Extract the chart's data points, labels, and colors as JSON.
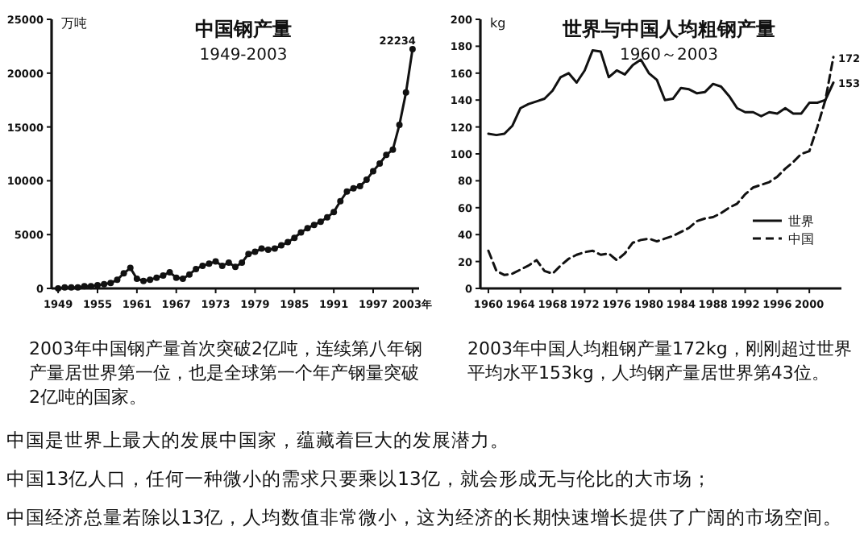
{
  "chart_data": [
    {
      "type": "line",
      "title": "中国钢产量",
      "subtitle": "1949-2003",
      "ylabel": "万吨",
      "marker": "circle",
      "grid": false,
      "x": [
        1949,
        1950,
        1951,
        1952,
        1953,
        1954,
        1955,
        1956,
        1957,
        1958,
        1959,
        1960,
        1961,
        1962,
        1963,
        1964,
        1965,
        1966,
        1967,
        1968,
        1969,
        1970,
        1971,
        1972,
        1973,
        1974,
        1975,
        1976,
        1977,
        1978,
        1979,
        1980,
        1981,
        1982,
        1983,
        1984,
        1985,
        1986,
        1987,
        1988,
        1989,
        1990,
        1991,
        1992,
        1993,
        1994,
        1995,
        1996,
        1997,
        1998,
        1999,
        2000,
        2001,
        2002,
        2003
      ],
      "series": [
        {
          "color": "#111111",
          "values": [
            0,
            100,
            100,
            100,
            200,
            200,
            300,
            400,
            500,
            800,
            1400,
            1900,
            900,
            700,
            800,
            1000,
            1200,
            1500,
            1000,
            900,
            1300,
            1800,
            2100,
            2300,
            2500,
            2100,
            2400,
            2000,
            2400,
            3200,
            3400,
            3700,
            3600,
            3700,
            4000,
            4300,
            4700,
            5200,
            5600,
            5900,
            6200,
            6600,
            7100,
            8100,
            9000,
            9300,
            9500,
            10100,
            10900,
            11600,
            12400,
            12900,
            15200,
            18200,
            22234
          ],
          "value_labels": [
            null,
            null,
            null,
            null,
            null,
            null,
            null,
            null,
            null,
            null,
            null,
            null,
            null,
            null,
            null,
            null,
            null,
            null,
            null,
            null,
            null,
            null,
            null,
            null,
            null,
            null,
            null,
            null,
            null,
            null,
            null,
            null,
            null,
            null,
            null,
            null,
            null,
            null,
            null,
            null,
            null,
            null,
            null,
            null,
            null,
            null,
            null,
            null,
            null,
            null,
            null,
            null,
            null,
            null,
            "22234"
          ]
        }
      ],
      "xlim": [
        1948,
        2004
      ],
      "xticks": [
        1949,
        1955,
        1961,
        1967,
        1973,
        1979,
        1985,
        1991,
        1997,
        {
          "value": 2003,
          "label": "2003年"
        }
      ],
      "ylim": [
        0,
        25000
      ],
      "yticks": [
        0,
        5000,
        10000,
        15000,
        20000,
        25000
      ],
      "annotations": [
        "2003年中国钢产量首次突破2亿吨，连续第八年钢产量居世界第一位，也是全球第一个年产钢量突破2亿吨的国家。"
      ]
    },
    {
      "type": "line",
      "title": "世界与中国人均粗钢产量",
      "subtitle": "1960～2003",
      "ylabel": "kg",
      "grid": false,
      "legend": "bottom right",
      "x": [
        1960,
        1961,
        1962,
        1963,
        1964,
        1965,
        1966,
        1967,
        1968,
        1969,
        1970,
        1971,
        1972,
        1973,
        1974,
        1975,
        1976,
        1977,
        1978,
        1979,
        1980,
        1981,
        1982,
        1983,
        1984,
        1985,
        1986,
        1987,
        1988,
        1989,
        1990,
        1991,
        1992,
        1993,
        1994,
        1995,
        1996,
        1997,
        1998,
        1999,
        2000,
        2001,
        2002,
        2003
      ],
      "series": [
        {
          "name": "世界",
          "color": "#111111",
          "line_style": "solid",
          "values": [
            115,
            114,
            115,
            121,
            134,
            137,
            139,
            141,
            147,
            157,
            160,
            153,
            162,
            177,
            176,
            157,
            162,
            159,
            166,
            170,
            160,
            155,
            140,
            141,
            149,
            148,
            145,
            146,
            152,
            150,
            143,
            134,
            131,
            131,
            128,
            131,
            130,
            134,
            130,
            130,
            138,
            138,
            140,
            153
          ],
          "value_labels": [
            null,
            null,
            null,
            null,
            null,
            null,
            null,
            null,
            null,
            null,
            null,
            null,
            null,
            null,
            null,
            null,
            null,
            null,
            null,
            null,
            null,
            null,
            null,
            null,
            null,
            null,
            null,
            null,
            null,
            null,
            null,
            null,
            null,
            null,
            null,
            null,
            null,
            null,
            null,
            null,
            null,
            null,
            null,
            "153"
          ]
        },
        {
          "name": "中国",
          "color": "#111111",
          "line_style": "dashed",
          "values": [
            28,
            13,
            10,
            11,
            14,
            17,
            21,
            13,
            11,
            17,
            22,
            25,
            27,
            28,
            25,
            26,
            21,
            26,
            34,
            36,
            37,
            35,
            37,
            39,
            42,
            45,
            50,
            52,
            53,
            56,
            60,
            63,
            70,
            75,
            77,
            79,
            83,
            89,
            94,
            100,
            102,
            120,
            140,
            172
          ],
          "value_labels": [
            null,
            null,
            null,
            null,
            null,
            null,
            null,
            null,
            null,
            null,
            null,
            null,
            null,
            null,
            null,
            null,
            null,
            null,
            null,
            null,
            null,
            null,
            null,
            null,
            null,
            null,
            null,
            null,
            null,
            null,
            null,
            null,
            null,
            null,
            null,
            null,
            null,
            null,
            null,
            null,
            null,
            null,
            null,
            "172"
          ]
        }
      ],
      "xlim": [
        1959,
        2004
      ],
      "xticks": [
        1960,
        1964,
        1968,
        1972,
        1976,
        1980,
        1984,
        1988,
        1992,
        1996,
        2000
      ],
      "ylim": [
        0,
        200
      ],
      "yticks": [
        0,
        20,
        40,
        60,
        80,
        100,
        120,
        140,
        160,
        180,
        200
      ],
      "annotations": [
        "2003年中国人均粗钢产量172kg，刚刚超过世界平均水平153kg，人均钢产量居世界第43位。"
      ]
    },
    {
      "type": "other",
      "annotations": [
        "中国是世界上最大的发展中国家，蕴藏着巨大的发展潜力。",
        "中国13亿人口，任何一种微小的需求只要乘以13亿，就会形成无与伦比的大市场；",
        "中国经济总量若除以13亿，人均数值非常微小，这为经济的长期快速增长提供了广阔的市场空间。"
      ]
    }
  ]
}
